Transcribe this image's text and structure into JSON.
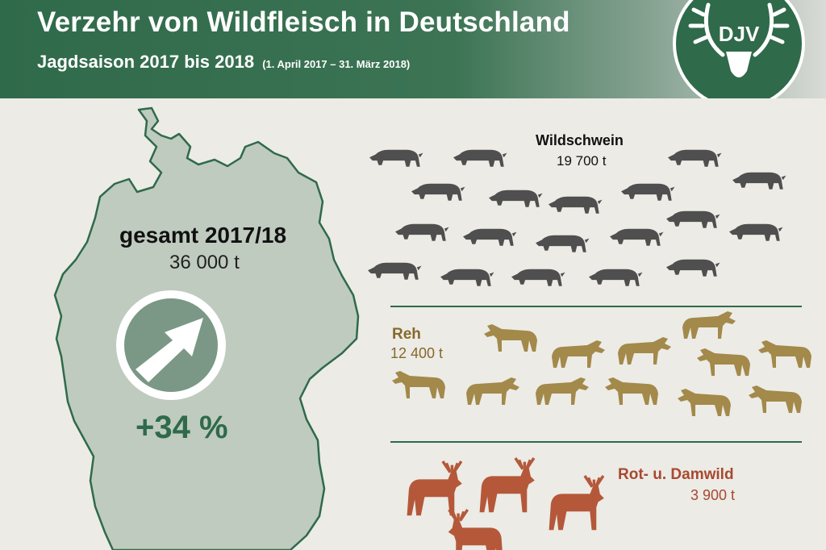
{
  "header": {
    "title": "Verzehr von Wildfleisch in Deutschland",
    "subtitle": "Jagdsaison 2017 bis 2018",
    "period": "(1. April 2017 – 31. März 2018)"
  },
  "logo": {
    "text": "DJV",
    "icon": "stag-antlers-icon"
  },
  "total": {
    "label": "gesamt 2017/18",
    "value": "36 000 t",
    "change": "+34 %",
    "trend_icon": "arrow-up-right-icon"
  },
  "categories": [
    {
      "name": "Wildschwein",
      "value": "19 700 t",
      "icon": "wild-boar-icon",
      "color": "#4f4f4f"
    },
    {
      "name": "Reh",
      "value": "12 400 t",
      "icon": "roe-deer-icon",
      "color": "#a3894a"
    },
    {
      "name": "Rot- u. Damwild",
      "value": "3 900 t",
      "icon": "red-deer-icon",
      "color": "#b5583a"
    }
  ],
  "colors": {
    "brand_green": "#2f6a4a",
    "map_fill": "#bfcbbf",
    "boar": "#4f4f4f",
    "roe": "#a3894a",
    "red_deer": "#b5583a",
    "background": "#ecebe6"
  }
}
